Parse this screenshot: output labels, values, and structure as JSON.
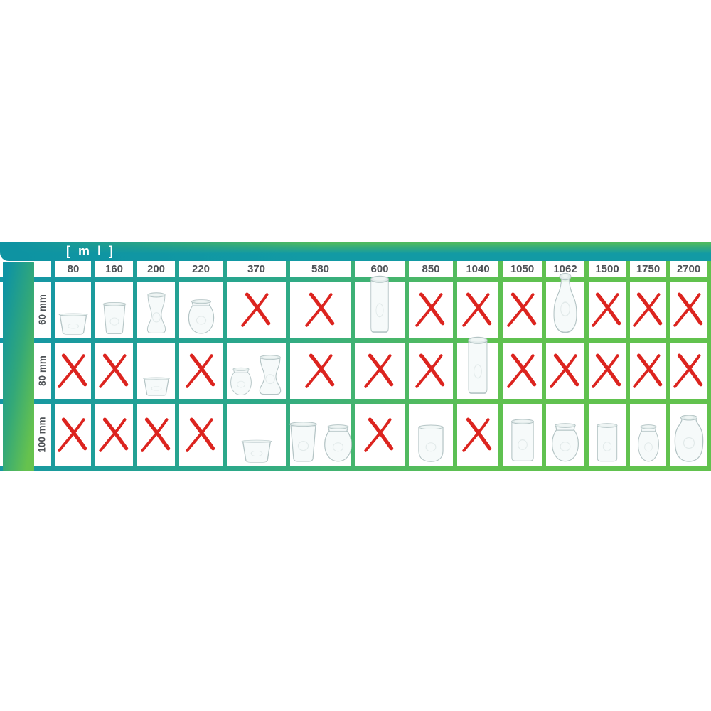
{
  "header": {
    "unit_label": "[ m l ]"
  },
  "colors": {
    "teal": "#1496a5",
    "green": "#5fc150",
    "header_text": "#4e5256",
    "x_red": "#dc241f",
    "glass_stroke": "#b4c4c5",
    "glass_fill": "#f5f9f9",
    "lid_fill": "#e1ebea"
  },
  "chart_data": {
    "type": "table",
    "unit_label": "[ m l ]",
    "columns": [
      "80",
      "160",
      "200",
      "220",
      "370",
      "580",
      "600",
      "850",
      "1040",
      "1050",
      "1062",
      "1500",
      "1750",
      "2700"
    ],
    "rows": [
      "60 mm",
      "80 mm",
      "100 mm"
    ],
    "values": [
      [
        "jar",
        "jar",
        "jar",
        "jar",
        "x",
        "x",
        "jar",
        "x",
        "x",
        "x",
        "jar",
        "x",
        "x",
        "x"
      ],
      [
        "x",
        "x",
        "jar",
        "x",
        "jar,jar",
        "x",
        "x",
        "x",
        "jar",
        "x",
        "x",
        "x",
        "x",
        "x"
      ],
      [
        "x",
        "x",
        "x",
        "x",
        "jar",
        "jar,jar",
        "x",
        "jar",
        "x",
        "jar",
        "jar",
        "jar",
        "jar",
        "jar"
      ]
    ]
  },
  "matrix": {
    "rows": [
      {
        "label": "60 mm",
        "cells": [
          {
            "jars": [
              {
                "shape": "mold",
                "w": 50,
                "h": 32
              }
            ]
          },
          {
            "jars": [
              {
                "shape": "mold",
                "w": 40,
                "h": 48
              }
            ]
          },
          {
            "jars": [
              {
                "shape": "slim",
                "w": 36,
                "h": 62
              }
            ]
          },
          {
            "jars": [
              {
                "shape": "tulip",
                "w": 44,
                "h": 52
              }
            ]
          },
          {
            "x": true
          },
          {
            "x": true
          },
          {
            "jars": [
              {
                "shape": "cyl",
                "w": 34,
                "h": 86
              }
            ]
          },
          {
            "x": true
          },
          {
            "x": true
          },
          {
            "x": true
          },
          {
            "jars": [
              {
                "shape": "bottle",
                "w": 42,
                "h": 90
              }
            ]
          },
          {
            "x": true
          },
          {
            "x": true
          },
          {
            "x": true
          }
        ]
      },
      {
        "label": "80 mm",
        "cells": [
          {
            "x": true
          },
          {
            "x": true
          },
          {
            "jars": [
              {
                "shape": "mold",
                "w": 46,
                "h": 28
              }
            ]
          },
          {
            "x": true
          },
          {
            "jars": [
              {
                "shape": "tulip",
                "w": 36,
                "h": 42
              },
              {
                "shape": "slim",
                "w": 42,
                "h": 60
              }
            ]
          },
          {
            "x": true
          },
          {
            "x": true
          },
          {
            "x": true
          },
          {
            "jars": [
              {
                "shape": "cyl",
                "w": 36,
                "h": 86
              }
            ]
          },
          {
            "x": true
          },
          {
            "x": true
          },
          {
            "x": true
          },
          {
            "x": true
          },
          {
            "x": true
          }
        ]
      },
      {
        "label": "100 mm",
        "cells": [
          {
            "x": true
          },
          {
            "x": true
          },
          {
            "x": true
          },
          {
            "x": true
          },
          {
            "jars": [
              {
                "shape": "mold",
                "w": 52,
                "h": 34
              }
            ]
          },
          {
            "jars": [
              {
                "shape": "mold",
                "w": 47,
                "h": 60
              },
              {
                "shape": "tulip",
                "w": 47,
                "h": 56
              }
            ]
          },
          {
            "x": true
          },
          {
            "jars": [
              {
                "shape": "tumbler",
                "w": 46,
                "h": 56
              }
            ]
          },
          {
            "x": true
          },
          {
            "jars": [
              {
                "shape": "cyl",
                "w": 42,
                "h": 64
              }
            ]
          },
          {
            "jars": [
              {
                "shape": "tulip",
                "w": 46,
                "h": 58
              }
            ]
          },
          {
            "jars": [
              {
                "shape": "cyl",
                "w": 38,
                "h": 58
              }
            ]
          },
          {
            "jars": [
              {
                "shape": "tulip",
                "w": 36,
                "h": 56
              }
            ]
          },
          {
            "jars": [
              {
                "shape": "tulipwide",
                "w": 50,
                "h": 70
              }
            ]
          }
        ]
      }
    ]
  }
}
